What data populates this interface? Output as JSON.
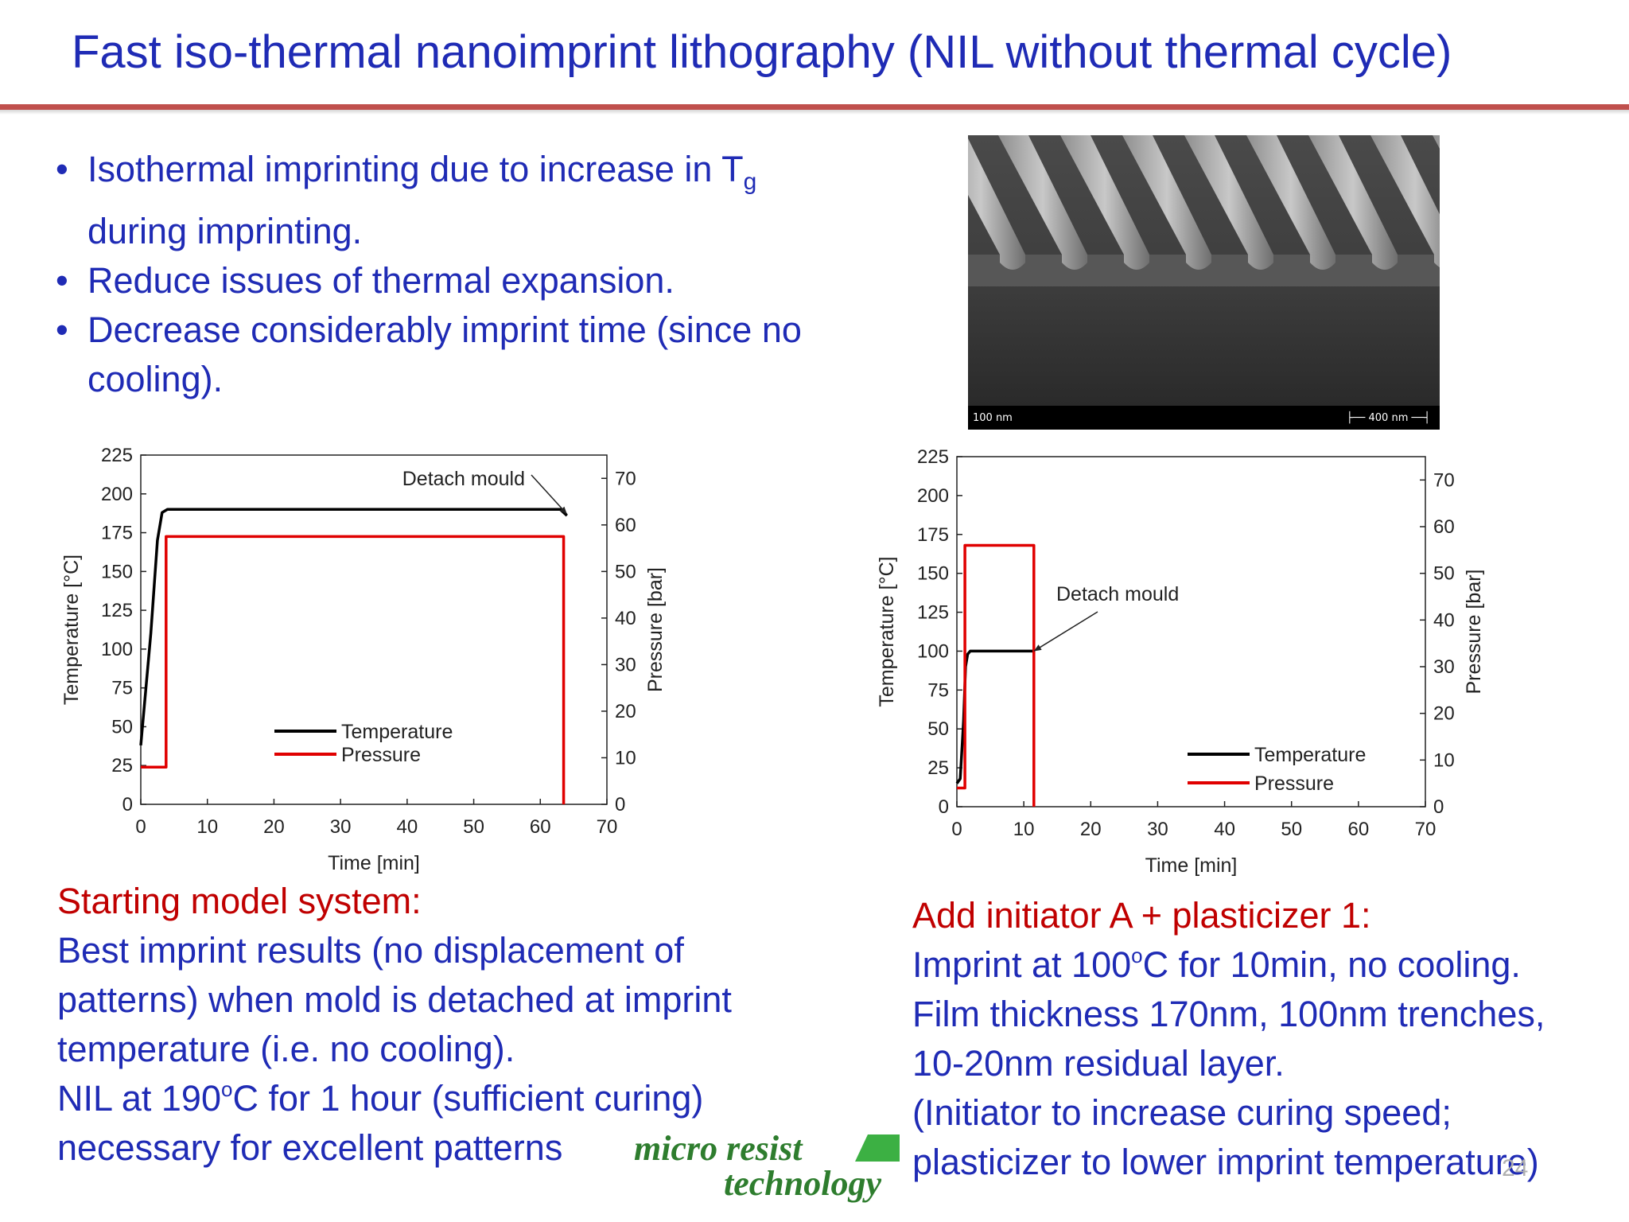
{
  "slide": {
    "title": "Fast iso-thermal nanoimprint lithography (NIL without thermal cycle)",
    "page_number": "24",
    "bullets": {
      "b1_text": "Isothermal imprinting due to increase in T",
      "b1_sub": "g",
      "b1_cont": "during imprinting.",
      "b2": "Reduce issues of thermal expansion.",
      "b3": "Decrease considerably imprint time (since no cooling)."
    },
    "sem_image": {
      "scale_left": "100 nm",
      "scale_right": "400 nm",
      "colors": {
        "background": "#3a3a3a",
        "ridge": "#b8b8b8",
        "bar": "#000000"
      }
    },
    "left_text": {
      "heading": "Starting model system:",
      "line1": "Best  imprint results (no displacement of",
      "line2": "patterns) when mold is detached at imprint",
      "line3": "temperature (i.e. no cooling).",
      "line4_a": "NIL at 190",
      "line4_sup": "o",
      "line4_b": "C for 1 hour (sufficient curing)",
      "line5": "necessary for excellent patterns"
    },
    "right_text": {
      "heading": "Add initiator A + plasticizer 1:",
      "line1_a": "Imprint at 100",
      "line1_sup": "o",
      "line1_b": "C for 10min, no cooling.",
      "line2": "Film thickness 170nm, 100nm trenches,",
      "line3": "10-20nm residual layer.",
      "line4": "(Initiator to increase curing speed;",
      "line5": "plasticizer to lower imprint temperature)"
    },
    "logo": {
      "line1": "micro resist",
      "line2": "technology"
    },
    "colors": {
      "title": "#1f2bb5",
      "heading": "#c00000",
      "rule": "#c0504d",
      "logo": "#2e7d2e"
    }
  },
  "chart_data": [
    {
      "type": "line",
      "xlabel": "Time [min]",
      "ylabel": "Temperature [°C]",
      "y2label": "Pressure [bar]",
      "xlim": [
        0,
        70
      ],
      "ylim": [
        0,
        225
      ],
      "y2lim": [
        0,
        75
      ],
      "x_ticks": [
        "0",
        "10",
        "20",
        "30",
        "40",
        "50",
        "60",
        "70"
      ],
      "y_ticks": [
        "0",
        "25",
        "50",
        "75",
        "100",
        "125",
        "150",
        "175",
        "200",
        "225"
      ],
      "y2_ticks": [
        "0",
        "10",
        "20",
        "30",
        "40",
        "50",
        "60",
        "70"
      ],
      "legend_position": "center",
      "series": [
        {
          "name": "Temperature",
          "axis": "left",
          "color": "#000000",
          "x": [
            0,
            1.5,
            2.5,
            3.2,
            4,
            63,
            64
          ],
          "y": [
            38,
            110,
            170,
            188,
            190,
            190,
            186
          ]
        },
        {
          "name": "Pressure",
          "axis": "right",
          "color": "#e00000",
          "x": [
            0,
            3.8,
            3.8,
            63.5,
            63.5
          ],
          "y": [
            8,
            8,
            57.5,
            57.5,
            0
          ]
        }
      ],
      "annotations": [
        {
          "text": "Detach mould",
          "x": 64,
          "y": 187
        }
      ]
    },
    {
      "type": "line",
      "xlabel": "Time [min]",
      "ylabel": "Temperature [°C]",
      "y2label": "Pressure [bar]",
      "xlim": [
        0,
        70
      ],
      "ylim": [
        0,
        225
      ],
      "y2lim": [
        0,
        75
      ],
      "x_ticks": [
        "0",
        "10",
        "20",
        "30",
        "40",
        "50",
        "60",
        "70"
      ],
      "y_ticks": [
        "0",
        "25",
        "50",
        "75",
        "100",
        "125",
        "150",
        "175",
        "200",
        "225"
      ],
      "y2_ticks": [
        "0",
        "10",
        "20",
        "30",
        "40",
        "50",
        "60",
        "70"
      ],
      "legend_position": "bottom-right",
      "series": [
        {
          "name": "Temperature",
          "axis": "left",
          "color": "#000000",
          "x": [
            0,
            0.5,
            1,
            1.3,
            1.6,
            2,
            3,
            11.5
          ],
          "y": [
            15,
            18,
            55,
            90,
            98,
            100,
            100,
            100
          ]
        },
        {
          "name": "Pressure",
          "axis": "right",
          "color": "#e00000",
          "x": [
            0,
            1.2,
            1.2,
            11.5,
            11.5
          ],
          "y": [
            4,
            4,
            56,
            56,
            0
          ]
        }
      ],
      "annotations": [
        {
          "text": "Detach mould",
          "x": 11.5,
          "y": 100
        }
      ]
    }
  ]
}
